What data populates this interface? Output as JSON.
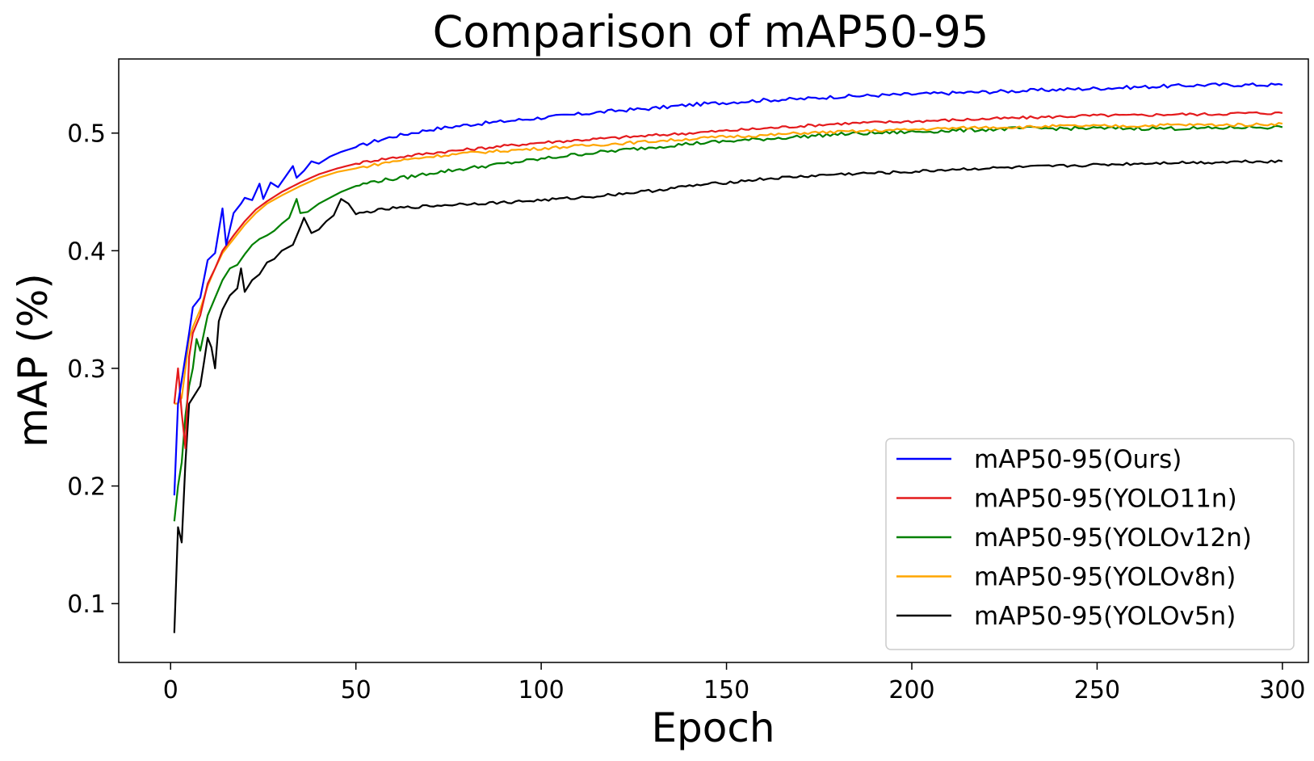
{
  "chart_data": {
    "type": "line",
    "title": "Comparison of mAP50-95",
    "xlabel": "Epoch",
    "ylabel": "mAP (%)",
    "xlim": [
      -14,
      307
    ],
    "ylim": [
      0.05,
      0.563
    ],
    "xticks": [
      0,
      50,
      100,
      150,
      200,
      250,
      300
    ],
    "yticks": [
      0.1,
      0.2,
      0.3,
      0.4,
      0.5
    ],
    "ytick_labels": [
      "0.1",
      "0.2",
      "0.3",
      "0.4",
      "0.5"
    ],
    "grid": false,
    "legend_position": "bottom-right",
    "series": [
      {
        "name": "mAP50-95(Ours)",
        "color": "#0000ff",
        "points": [
          [
            1,
            0.192
          ],
          [
            2,
            0.27
          ],
          [
            3,
            0.29
          ],
          [
            5,
            0.33
          ],
          [
            6,
            0.352
          ],
          [
            8,
            0.36
          ],
          [
            10,
            0.392
          ],
          [
            12,
            0.398
          ],
          [
            14,
            0.436
          ],
          [
            15,
            0.405
          ],
          [
            17,
            0.432
          ],
          [
            19,
            0.44
          ],
          [
            20,
            0.445
          ],
          [
            22,
            0.443
          ],
          [
            24,
            0.457
          ],
          [
            25,
            0.444
          ],
          [
            27,
            0.458
          ],
          [
            29,
            0.454
          ],
          [
            31,
            0.463
          ],
          [
            33,
            0.472
          ],
          [
            34,
            0.462
          ],
          [
            36,
            0.468
          ],
          [
            38,
            0.476
          ],
          [
            40,
            0.474
          ],
          [
            43,
            0.48
          ],
          [
            46,
            0.484
          ],
          [
            50,
            0.488
          ],
          [
            55,
            0.493
          ],
          [
            60,
            0.497
          ],
          [
            65,
            0.5
          ],
          [
            70,
            0.503
          ],
          [
            80,
            0.507
          ],
          [
            90,
            0.51
          ],
          [
            100,
            0.513
          ],
          [
            110,
            0.516
          ],
          [
            120,
            0.519
          ],
          [
            130,
            0.521
          ],
          [
            140,
            0.524
          ],
          [
            150,
            0.526
          ],
          [
            160,
            0.528
          ],
          [
            170,
            0.529
          ],
          [
            180,
            0.531
          ],
          [
            190,
            0.532
          ],
          [
            200,
            0.533
          ],
          [
            210,
            0.534
          ],
          [
            220,
            0.535
          ],
          [
            230,
            0.536
          ],
          [
            240,
            0.537
          ],
          [
            250,
            0.538
          ],
          [
            260,
            0.539
          ],
          [
            270,
            0.54
          ],
          [
            280,
            0.541
          ],
          [
            290,
            0.541
          ],
          [
            300,
            0.541
          ]
        ],
        "noise_amp": 0.0015
      },
      {
        "name": "mAP50-95(YOLO11n)",
        "color": "#e41a1c",
        "points": [
          [
            1,
            0.27
          ],
          [
            2,
            0.3
          ],
          [
            3,
            0.262
          ],
          [
            4,
            0.232
          ],
          [
            5,
            0.31
          ],
          [
            6,
            0.33
          ],
          [
            8,
            0.345
          ],
          [
            10,
            0.372
          ],
          [
            12,
            0.385
          ],
          [
            14,
            0.4
          ],
          [
            17,
            0.413
          ],
          [
            20,
            0.425
          ],
          [
            23,
            0.435
          ],
          [
            26,
            0.442
          ],
          [
            30,
            0.45
          ],
          [
            35,
            0.458
          ],
          [
            40,
            0.465
          ],
          [
            45,
            0.47
          ],
          [
            50,
            0.474
          ],
          [
            55,
            0.477
          ],
          [
            60,
            0.479
          ],
          [
            70,
            0.483
          ],
          [
            80,
            0.486
          ],
          [
            90,
            0.489
          ],
          [
            100,
            0.492
          ],
          [
            110,
            0.494
          ],
          [
            120,
            0.496
          ],
          [
            130,
            0.498
          ],
          [
            140,
            0.5
          ],
          [
            150,
            0.502
          ],
          [
            160,
            0.504
          ],
          [
            170,
            0.506
          ],
          [
            180,
            0.508
          ],
          [
            190,
            0.509
          ],
          [
            200,
            0.51
          ],
          [
            210,
            0.511
          ],
          [
            220,
            0.512
          ],
          [
            230,
            0.513
          ],
          [
            240,
            0.514
          ],
          [
            250,
            0.515
          ],
          [
            260,
            0.515
          ],
          [
            270,
            0.516
          ],
          [
            280,
            0.516
          ],
          [
            290,
            0.517
          ],
          [
            300,
            0.517
          ]
        ],
        "noise_amp": 0.0012
      },
      {
        "name": "mAP50-95(YOLOv12n)",
        "color": "#008000",
        "points": [
          [
            1,
            0.17
          ],
          [
            2,
            0.2
          ],
          [
            3,
            0.22
          ],
          [
            4,
            0.26
          ],
          [
            5,
            0.285
          ],
          [
            6,
            0.3
          ],
          [
            7,
            0.325
          ],
          [
            8,
            0.315
          ],
          [
            9,
            0.33
          ],
          [
            10,
            0.345
          ],
          [
            12,
            0.36
          ],
          [
            14,
            0.375
          ],
          [
            16,
            0.385
          ],
          [
            18,
            0.388
          ],
          [
            20,
            0.397
          ],
          [
            22,
            0.405
          ],
          [
            24,
            0.41
          ],
          [
            26,
            0.413
          ],
          [
            28,
            0.417
          ],
          [
            30,
            0.423
          ],
          [
            32,
            0.428
          ],
          [
            34,
            0.444
          ],
          [
            35,
            0.432
          ],
          [
            37,
            0.433
          ],
          [
            40,
            0.44
          ],
          [
            43,
            0.445
          ],
          [
            46,
            0.45
          ],
          [
            50,
            0.455
          ],
          [
            55,
            0.459
          ],
          [
            60,
            0.461
          ],
          [
            65,
            0.463
          ],
          [
            70,
            0.466
          ],
          [
            80,
            0.47
          ],
          [
            90,
            0.474
          ],
          [
            100,
            0.478
          ],
          [
            110,
            0.482
          ],
          [
            120,
            0.485
          ],
          [
            130,
            0.488
          ],
          [
            140,
            0.491
          ],
          [
            150,
            0.493
          ],
          [
            160,
            0.495
          ],
          [
            170,
            0.497
          ],
          [
            180,
            0.499
          ],
          [
            190,
            0.5
          ],
          [
            200,
            0.501
          ],
          [
            210,
            0.502
          ],
          [
            220,
            0.503
          ],
          [
            230,
            0.504
          ],
          [
            240,
            0.504
          ],
          [
            250,
            0.504
          ],
          [
            260,
            0.504
          ],
          [
            270,
            0.504
          ],
          [
            280,
            0.504
          ],
          [
            290,
            0.505
          ],
          [
            300,
            0.505
          ]
        ],
        "noise_amp": 0.0015
      },
      {
        "name": "mAP50-95(YOLOv8n)",
        "color": "#ffa500",
        "points": [
          [
            1,
            0.27
          ],
          [
            2,
            0.27
          ],
          [
            3,
            0.275
          ],
          [
            4,
            0.3
          ],
          [
            5,
            0.325
          ],
          [
            6,
            0.335
          ],
          [
            8,
            0.35
          ],
          [
            10,
            0.37
          ],
          [
            12,
            0.385
          ],
          [
            14,
            0.398
          ],
          [
            17,
            0.41
          ],
          [
            20,
            0.422
          ],
          [
            23,
            0.432
          ],
          [
            26,
            0.44
          ],
          [
            30,
            0.447
          ],
          [
            35,
            0.455
          ],
          [
            40,
            0.462
          ],
          [
            45,
            0.467
          ],
          [
            50,
            0.47
          ],
          [
            55,
            0.473
          ],
          [
            60,
            0.476
          ],
          [
            70,
            0.48
          ],
          [
            80,
            0.483
          ],
          [
            90,
            0.485
          ],
          [
            100,
            0.487
          ],
          [
            110,
            0.489
          ],
          [
            120,
            0.491
          ],
          [
            130,
            0.493
          ],
          [
            140,
            0.495
          ],
          [
            150,
            0.497
          ],
          [
            160,
            0.498
          ],
          [
            170,
            0.5
          ],
          [
            180,
            0.501
          ],
          [
            190,
            0.502
          ],
          [
            200,
            0.503
          ],
          [
            210,
            0.504
          ],
          [
            220,
            0.505
          ],
          [
            230,
            0.505
          ],
          [
            240,
            0.506
          ],
          [
            250,
            0.506
          ],
          [
            260,
            0.506
          ],
          [
            270,
            0.507
          ],
          [
            280,
            0.507
          ],
          [
            290,
            0.507
          ],
          [
            300,
            0.508
          ]
        ],
        "noise_amp": 0.0012
      },
      {
        "name": "mAP50-95(YOLOv5n)",
        "color": "#000000",
        "points": [
          [
            1,
            0.075
          ],
          [
            2,
            0.165
          ],
          [
            3,
            0.152
          ],
          [
            4,
            0.22
          ],
          [
            5,
            0.27
          ],
          [
            6,
            0.275
          ],
          [
            7,
            0.28
          ],
          [
            8,
            0.285
          ],
          [
            9,
            0.305
          ],
          [
            10,
            0.326
          ],
          [
            11,
            0.318
          ],
          [
            12,
            0.3
          ],
          [
            13,
            0.34
          ],
          [
            14,
            0.35
          ],
          [
            16,
            0.362
          ],
          [
            18,
            0.368
          ],
          [
            19,
            0.385
          ],
          [
            20,
            0.365
          ],
          [
            22,
            0.375
          ],
          [
            24,
            0.38
          ],
          [
            26,
            0.39
          ],
          [
            28,
            0.393
          ],
          [
            30,
            0.4
          ],
          [
            33,
            0.405
          ],
          [
            35,
            0.42
          ],
          [
            36,
            0.428
          ],
          [
            38,
            0.415
          ],
          [
            40,
            0.418
          ],
          [
            42,
            0.425
          ],
          [
            44,
            0.43
          ],
          [
            46,
            0.444
          ],
          [
            48,
            0.44
          ],
          [
            50,
            0.431
          ],
          [
            55,
            0.434
          ],
          [
            60,
            0.436
          ],
          [
            70,
            0.438
          ],
          [
            80,
            0.44
          ],
          [
            90,
            0.441
          ],
          [
            100,
            0.443
          ],
          [
            110,
            0.445
          ],
          [
            120,
            0.448
          ],
          [
            130,
            0.451
          ],
          [
            140,
            0.455
          ],
          [
            150,
            0.458
          ],
          [
            160,
            0.461
          ],
          [
            170,
            0.463
          ],
          [
            180,
            0.465
          ],
          [
            190,
            0.466
          ],
          [
            200,
            0.467
          ],
          [
            210,
            0.469
          ],
          [
            220,
            0.47
          ],
          [
            230,
            0.471
          ],
          [
            240,
            0.472
          ],
          [
            250,
            0.473
          ],
          [
            260,
            0.474
          ],
          [
            270,
            0.475
          ],
          [
            280,
            0.475
          ],
          [
            290,
            0.476
          ],
          [
            300,
            0.476
          ]
        ],
        "noise_amp": 0.0012
      }
    ]
  }
}
